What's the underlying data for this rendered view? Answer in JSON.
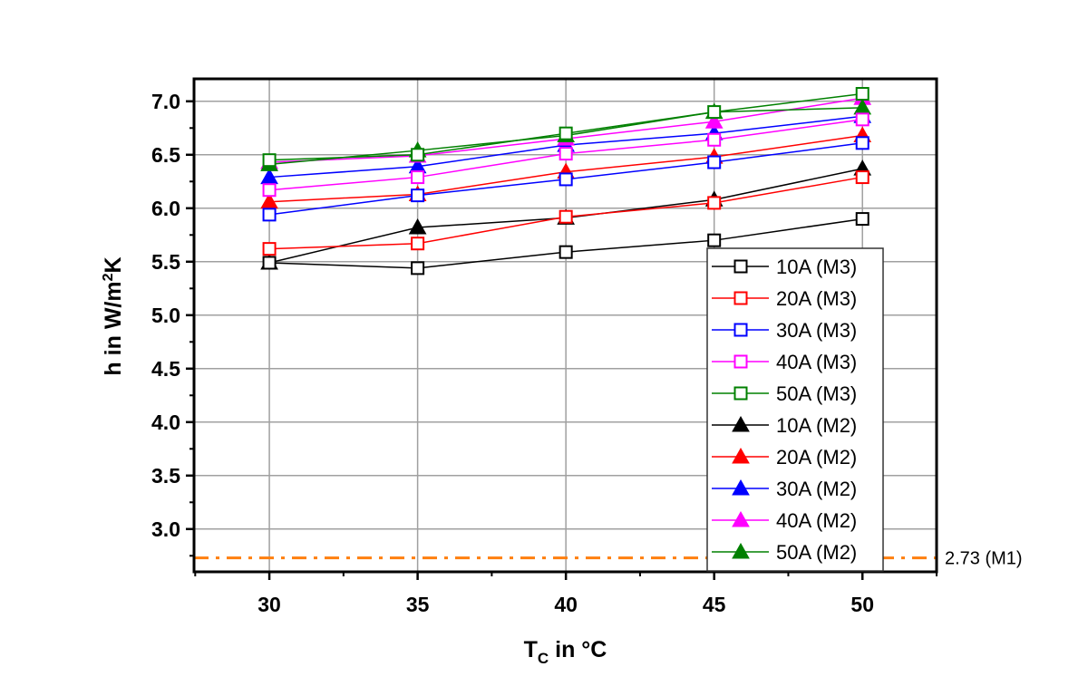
{
  "chart_data": {
    "type": "line",
    "title": "",
    "xlabel": "T_C in °C",
    "xlabel_main": "T",
    "xlabel_sub": "C",
    "xlabel_rest": " in °C",
    "ylabel": "h in W/m²K",
    "ylabel_main": "h in W/m",
    "ylabel_sup": "2",
    "ylabel_rest": "K",
    "x": [
      30,
      35,
      40,
      45,
      50
    ],
    "xlim": [
      27.46,
      52.5
    ],
    "ylim": [
      2.6,
      7.21
    ],
    "xticks": [
      30,
      35,
      40,
      45,
      50
    ],
    "xtick_labels": [
      "30",
      "35",
      "40",
      "45",
      "50"
    ],
    "yticks": [
      3.0,
      3.5,
      4.0,
      4.5,
      5.0,
      5.5,
      6.0,
      6.5,
      7.0
    ],
    "ytick_labels": [
      "3.0",
      "3.5",
      "4.0",
      "4.5",
      "5.0",
      "5.5",
      "6.0",
      "6.5",
      "7.0"
    ],
    "grid": true,
    "legend_position": "bottom-right",
    "series": [
      {
        "name": "10A (M3)",
        "marker": "open-square",
        "color": "#000000",
        "values": [
          5.49,
          5.44,
          5.59,
          5.7,
          5.9
        ]
      },
      {
        "name": "20A (M3)",
        "marker": "open-square",
        "color": "#ff0000",
        "values": [
          5.62,
          5.67,
          5.92,
          6.05,
          6.29
        ]
      },
      {
        "name": "30A (M3)",
        "marker": "open-square",
        "color": "#0000ff",
        "values": [
          5.94,
          6.12,
          6.27,
          6.43,
          6.61
        ]
      },
      {
        "name": "40A (M3)",
        "marker": "open-square",
        "color": "#ff00ff",
        "values": [
          6.17,
          6.29,
          6.51,
          6.64,
          6.83
        ]
      },
      {
        "name": "50A (M3)",
        "marker": "open-square",
        "color": "#008000",
        "values": [
          6.45,
          6.5,
          6.7,
          6.9,
          7.07
        ]
      },
      {
        "name": "10A (M2)",
        "marker": "filled-triangle",
        "color": "#000000",
        "values": [
          5.49,
          5.82,
          5.91,
          6.08,
          6.37
        ]
      },
      {
        "name": "20A (M2)",
        "marker": "filled-triangle",
        "color": "#ff0000",
        "values": [
          6.06,
          6.13,
          6.34,
          6.48,
          6.68
        ]
      },
      {
        "name": "30A (M2)",
        "marker": "filled-triangle",
        "color": "#0000ff",
        "values": [
          6.29,
          6.39,
          6.59,
          6.7,
          6.86
        ]
      },
      {
        "name": "40A (M2)",
        "marker": "filled-triangle",
        "color": "#ff00ff",
        "values": [
          6.43,
          6.49,
          6.65,
          6.81,
          7.03
        ]
      },
      {
        "name": "50A (M2)",
        "marker": "filled-triangle",
        "color": "#008000",
        "values": [
          6.41,
          6.54,
          6.68,
          6.9,
          6.94
        ]
      }
    ],
    "reference_line": {
      "value": 2.73,
      "label": "2.73 (M1)",
      "color": "#ff7f0e",
      "style": "dash-dot"
    }
  }
}
